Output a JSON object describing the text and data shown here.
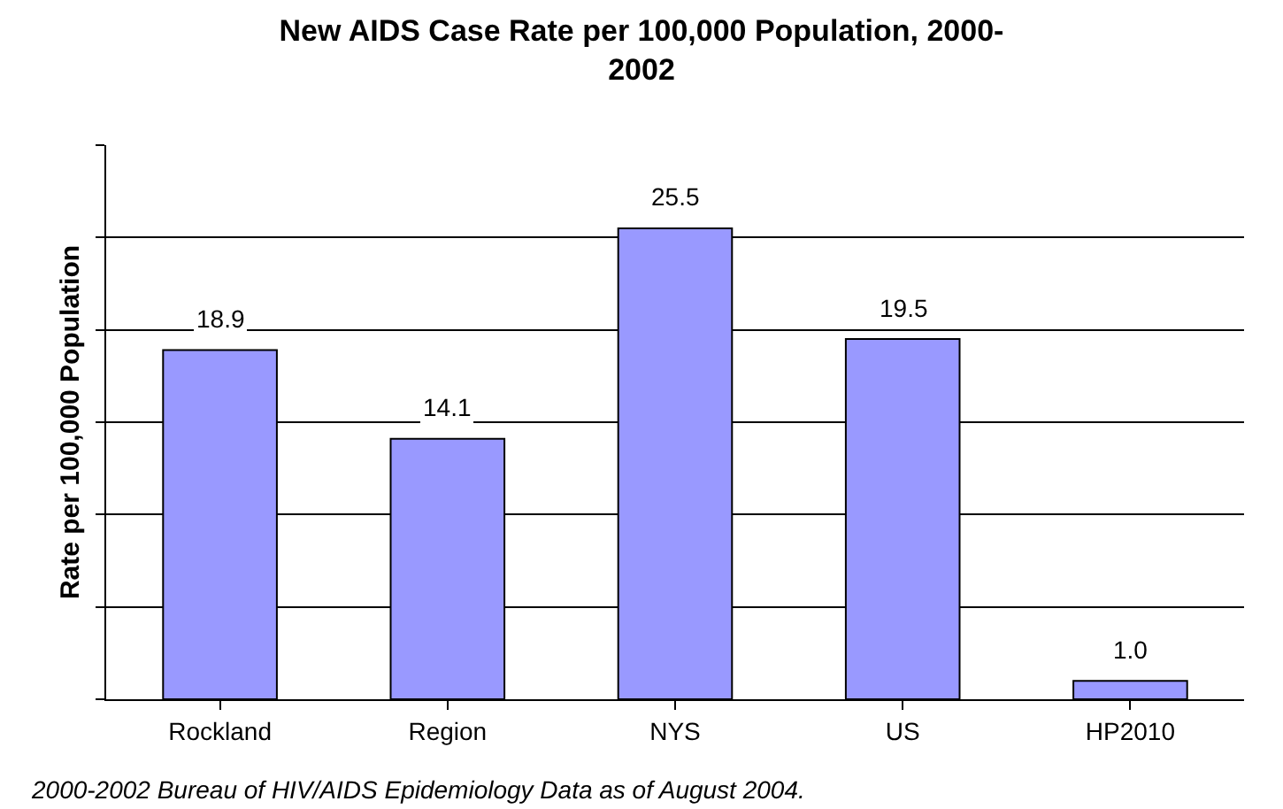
{
  "chart_data": {
    "type": "bar",
    "title": "New AIDS Case Rate per 100,000 Population, 2000-2002",
    "ylabel": "Rate per 100,000 Population",
    "categories": [
      "Rockland",
      "Region",
      "NYS",
      "US",
      "HP2010"
    ],
    "values": [
      18.9,
      14.1,
      25.5,
      19.5,
      1.0
    ],
    "value_labels": [
      "18.9",
      "14.1",
      "25.5",
      "19.5",
      "1.0"
    ],
    "color": "#9999ff",
    "ylim": [
      0,
      30
    ],
    "yticks": [
      {
        "value": 0,
        "label": null
      },
      {
        "value": 5,
        "label": null
      },
      {
        "value": 10,
        "label": null
      },
      {
        "value": 15,
        "label": null
      },
      {
        "value": 20,
        "label": null
      },
      {
        "value": 25,
        "label": null
      },
      {
        "value": 30,
        "label": null
      }
    ],
    "grid": "y",
    "legend": false,
    "tick_labels": "x",
    "annotations": [
      "2000-2002 Bureau of HIV/AIDS Epidemiology Data as of August 2004."
    ]
  }
}
